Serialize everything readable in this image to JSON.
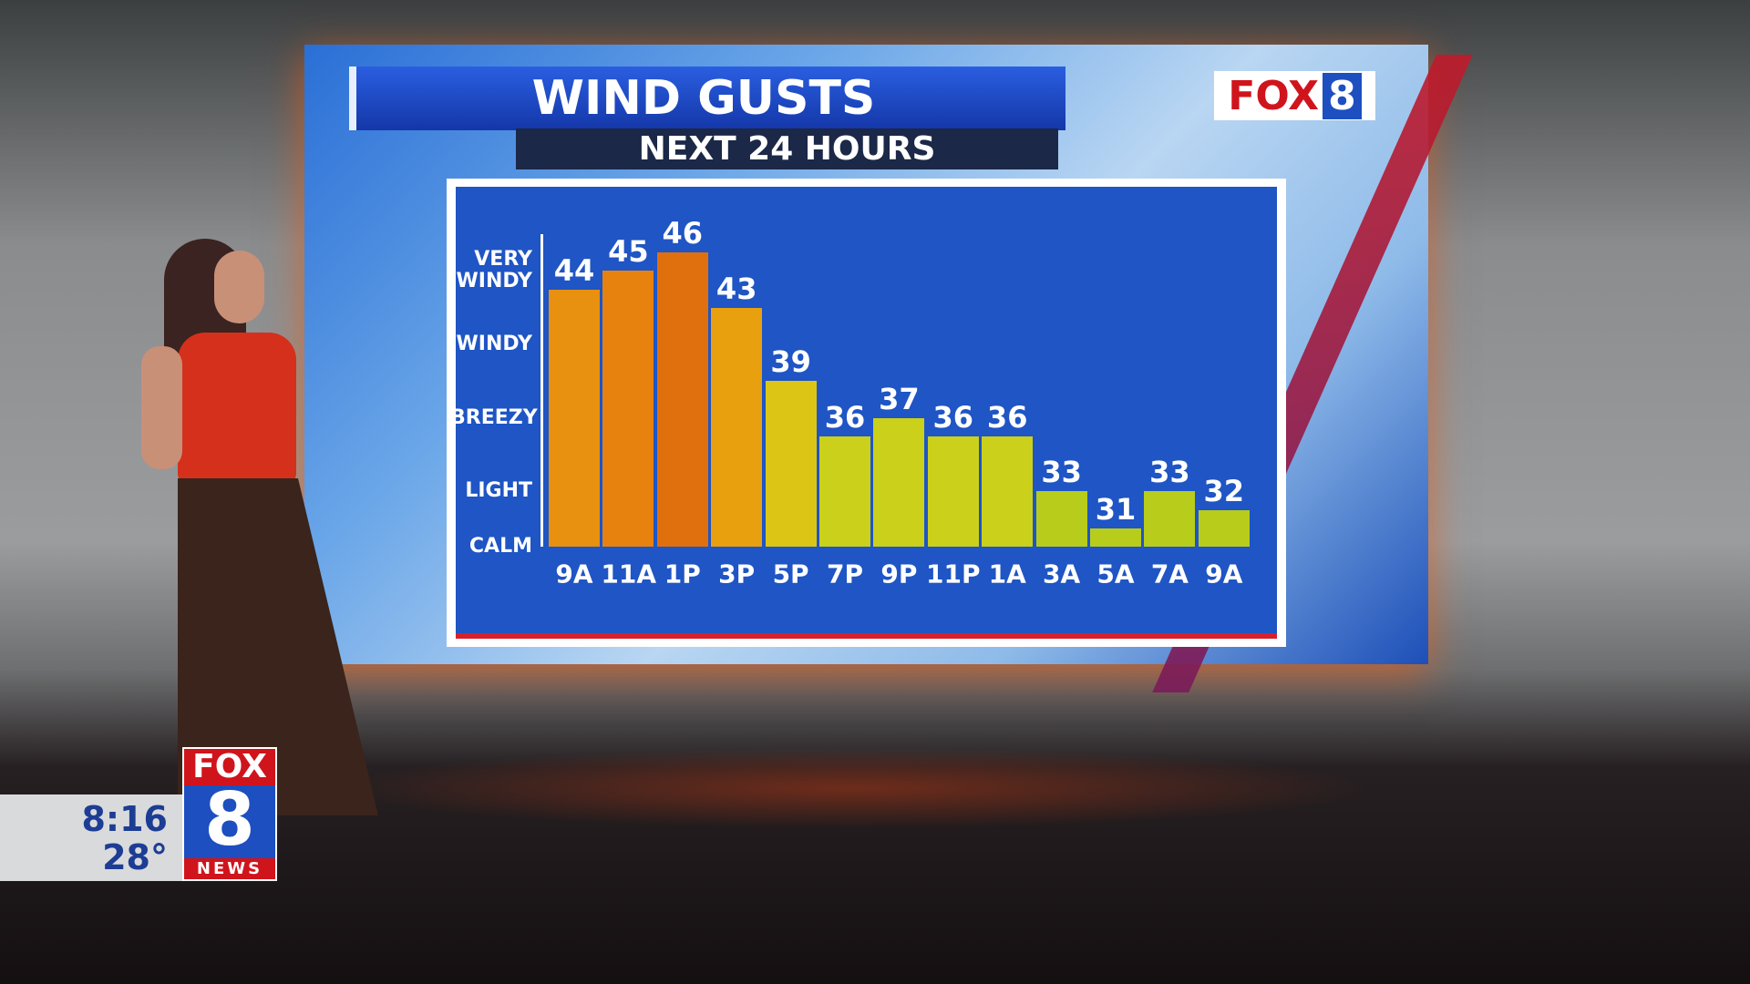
{
  "chart_data": {
    "type": "bar",
    "title": "WIND GUSTS",
    "subtitle": "NEXT 24 HOURS",
    "categories": [
      "9A",
      "11A",
      "1P",
      "3P",
      "5P",
      "7P",
      "9P",
      "11P",
      "1A",
      "3A",
      "5A",
      "7A",
      "9A"
    ],
    "values": [
      44,
      45,
      46,
      43,
      39,
      36,
      37,
      36,
      36,
      33,
      31,
      33,
      32
    ],
    "colors": [
      "#e8900f",
      "#e8820f",
      "#e0700e",
      "#e8a00f",
      "#dcc514",
      "#cbd01a",
      "#cbd01a",
      "#cbd01a",
      "#cbd01a",
      "#b8cc1c",
      "#b8cc1c",
      "#b8cc1c",
      "#b8cc1c"
    ],
    "ylim": [
      30,
      47
    ],
    "yticks": [
      {
        "value": 30,
        "label": "CALM"
      },
      {
        "value": 33,
        "label": "LIGHT"
      },
      {
        "value": 37,
        "label": "BREEZY"
      },
      {
        "value": 41,
        "label": "WINDY"
      },
      {
        "value": 45,
        "label": "VERY WINDY"
      }
    ],
    "grid": false
  },
  "overlay": {
    "logo": {
      "fox": "FOX",
      "eight": "8"
    },
    "bug": {
      "time": "8:16",
      "temp": "28°",
      "fox": "FOX",
      "eight": "8",
      "news": "NEWS"
    }
  }
}
